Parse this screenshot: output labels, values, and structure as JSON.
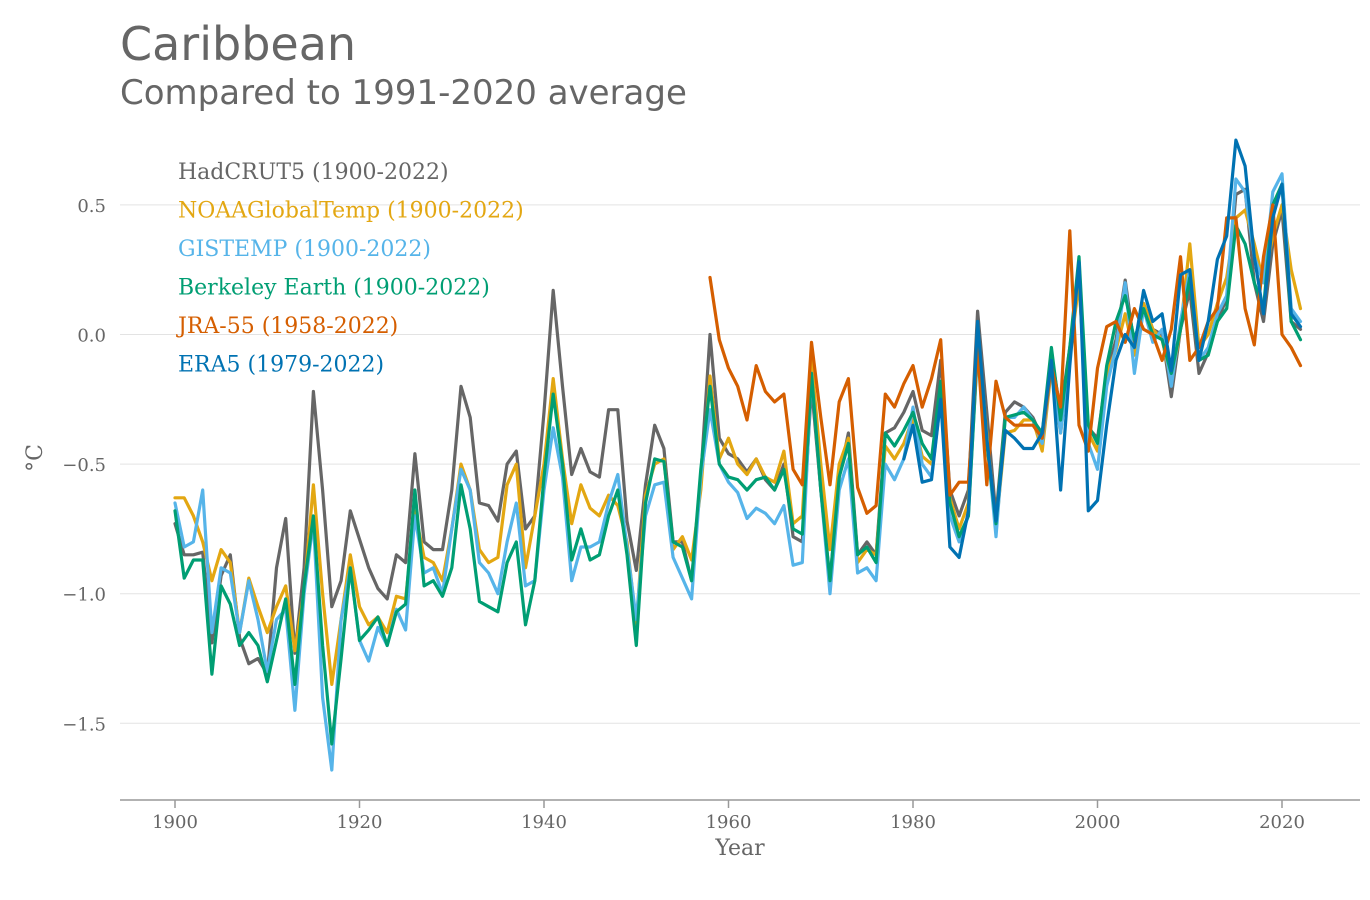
{
  "chart_data": {
    "type": "line",
    "title": "Caribbean",
    "subtitle": "Compared to 1991-2020 average",
    "xlabel": "Year",
    "ylabel": "°C",
    "xlim": [
      1894,
      1337
    ],
    "ylim": [
      -1.8,
      0.8
    ],
    "x_ticks": [
      1900,
      1920,
      1940,
      1960,
      1980,
      2000,
      2020
    ],
    "x_tick_labels": [
      "1900",
      "1920",
      "1940",
      "1960",
      "1980",
      "2000",
      "2020"
    ],
    "y_ticks": [
      -1.5,
      -1.0,
      -0.5,
      0.0,
      0.5
    ],
    "y_tick_labels": [
      "−1.5",
      "−1.0",
      "−0.5",
      "0.0",
      "0.5"
    ],
    "grid": "horizontal",
    "legend_position": "top-left",
    "series": [
      {
        "name": "HadCRUT5 (1900-2022)",
        "color": "#666666",
        "start_year": 1900,
        "values": [
          -0.73,
          -0.85,
          -0.85,
          -0.84,
          -1.19,
          -0.93,
          -0.85,
          -1.17,
          -1.27,
          -1.25,
          -1.31,
          -0.9,
          -0.71,
          -1.23,
          -0.9,
          -0.22,
          -0.6,
          -1.05,
          -0.95,
          -0.68,
          -0.79,
          -0.9,
          -0.98,
          -1.02,
          -0.85,
          -0.88,
          -0.46,
          -0.8,
          -0.83,
          -0.83,
          -0.6,
          -0.2,
          -0.32,
          -0.65,
          -0.66,
          -0.72,
          -0.5,
          -0.45,
          -0.75,
          -0.7,
          -0.3,
          0.17,
          -0.2,
          -0.54,
          -0.44,
          -0.53,
          -0.55,
          -0.29,
          -0.29,
          -0.72,
          -0.91,
          -0.58,
          -0.35,
          -0.44,
          -0.8,
          -0.8,
          -0.95,
          -0.55,
          0.0,
          -0.4,
          -0.46,
          -0.48,
          -0.53,
          -0.48,
          -0.56,
          -0.6,
          -0.5,
          -0.78,
          -0.8,
          -0.2,
          -0.6,
          -0.95,
          -0.55,
          -0.38,
          -0.85,
          -0.8,
          -0.85,
          -0.38,
          -0.36,
          -0.3,
          -0.22,
          -0.37,
          -0.39,
          -0.1,
          -0.6,
          -0.7,
          -0.6,
          0.09,
          -0.3,
          -0.7,
          -0.3,
          -0.26,
          -0.28,
          -0.32,
          -0.4,
          -0.08,
          -0.3,
          -0.05,
          0.2,
          -0.36,
          -0.4,
          -0.15,
          -0.02,
          0.21,
          -0.05,
          0.12,
          0.02,
          0.0,
          -0.24,
          0.02,
          0.17,
          -0.15,
          -0.07,
          0.05,
          0.14,
          0.54,
          0.56,
          0.2,
          0.05,
          0.35,
          0.48,
          0.05,
          0.02
        ]
      },
      {
        "name": "NOAAGlobalTemp (1900-2022)",
        "color": "#E3A712",
        "start_year": 1900,
        "values": [
          -0.63,
          -0.63,
          -0.7,
          -0.8,
          -0.95,
          -0.83,
          -0.88,
          -1.15,
          -0.94,
          -1.05,
          -1.15,
          -1.05,
          -0.97,
          -1.22,
          -0.99,
          -0.58,
          -1.0,
          -1.35,
          -1.1,
          -0.85,
          -1.05,
          -1.12,
          -1.09,
          -1.15,
          -1.01,
          -1.02,
          -0.68,
          -0.86,
          -0.88,
          -0.95,
          -0.75,
          -0.5,
          -0.6,
          -0.83,
          -0.88,
          -0.86,
          -0.58,
          -0.5,
          -0.9,
          -0.7,
          -0.5,
          -0.17,
          -0.48,
          -0.73,
          -0.58,
          -0.67,
          -0.7,
          -0.62,
          -0.66,
          -0.8,
          -1.12,
          -0.62,
          -0.5,
          -0.48,
          -0.83,
          -0.78,
          -0.87,
          -0.6,
          -0.16,
          -0.48,
          -0.4,
          -0.5,
          -0.54,
          -0.48,
          -0.55,
          -0.57,
          -0.45,
          -0.73,
          -0.7,
          -0.1,
          -0.5,
          -0.83,
          -0.5,
          -0.4,
          -0.88,
          -0.83,
          -0.85,
          -0.43,
          -0.48,
          -0.42,
          -0.32,
          -0.47,
          -0.5,
          -0.23,
          -0.63,
          -0.75,
          -0.65,
          0.0,
          -0.38,
          -0.75,
          -0.38,
          -0.37,
          -0.33,
          -0.33,
          -0.45,
          -0.13,
          -0.38,
          -0.08,
          0.2,
          -0.38,
          -0.45,
          -0.15,
          -0.06,
          0.08,
          -0.08,
          0.12,
          0.02,
          -0.02,
          -0.18,
          0.02,
          0.35,
          -0.05,
          0.0,
          0.12,
          0.22,
          0.45,
          0.48,
          0.35,
          0.2,
          0.38,
          0.5,
          0.25,
          0.1
        ]
      },
      {
        "name": "GISTEMP (1900-2022)",
        "color": "#56B4E9",
        "start_year": 1900,
        "values": [
          -0.65,
          -0.82,
          -0.8,
          -0.6,
          -1.15,
          -0.9,
          -0.92,
          -1.15,
          -0.95,
          -1.1,
          -1.3,
          -1.1,
          -1.06,
          -1.45,
          -1.0,
          -0.72,
          -1.4,
          -1.68,
          -1.1,
          -0.9,
          -1.18,
          -1.26,
          -1.13,
          -1.2,
          -1.06,
          -1.14,
          -0.7,
          -0.92,
          -0.9,
          -1.0,
          -0.75,
          -0.52,
          -0.6,
          -0.88,
          -0.92,
          -1.0,
          -0.8,
          -0.65,
          -0.97,
          -0.95,
          -0.6,
          -0.36,
          -0.55,
          -0.95,
          -0.82,
          -0.82,
          -0.8,
          -0.65,
          -0.54,
          -0.82,
          -1.1,
          -0.7,
          -0.58,
          -0.57,
          -0.86,
          -0.94,
          -1.02,
          -0.55,
          -0.29,
          -0.5,
          -0.57,
          -0.61,
          -0.71,
          -0.67,
          -0.69,
          -0.73,
          -0.66,
          -0.89,
          -0.88,
          -0.15,
          -0.6,
          -1.0,
          -0.6,
          -0.48,
          -0.92,
          -0.9,
          -0.95,
          -0.5,
          -0.56,
          -0.48,
          -0.28,
          -0.5,
          -0.55,
          -0.25,
          -0.7,
          -0.8,
          -0.7,
          -0.05,
          -0.4,
          -0.78,
          -0.32,
          -0.32,
          -0.28,
          -0.33,
          -0.42,
          -0.12,
          -0.38,
          -0.1,
          0.28,
          -0.42,
          -0.52,
          -0.2,
          -0.05,
          0.2,
          -0.15,
          0.1,
          -0.03,
          0.02,
          -0.2,
          0.05,
          0.25,
          -0.1,
          -0.05,
          0.08,
          0.15,
          0.6,
          0.55,
          0.3,
          0.2,
          0.55,
          0.62,
          0.1,
          0.05
        ]
      },
      {
        "name": "Berkeley Earth (1900-2022)",
        "color": "#009E73",
        "start_year": 1900,
        "values": [
          -0.68,
          -0.94,
          -0.87,
          -0.87,
          -1.31,
          -0.97,
          -1.04,
          -1.2,
          -1.15,
          -1.2,
          -1.34,
          -1.18,
          -1.02,
          -1.35,
          -0.97,
          -0.7,
          -1.2,
          -1.58,
          -1.25,
          -0.9,
          -1.18,
          -1.14,
          -1.09,
          -1.2,
          -1.07,
          -1.04,
          -0.6,
          -0.97,
          -0.95,
          -1.01,
          -0.9,
          -0.58,
          -0.75,
          -1.03,
          -1.05,
          -1.07,
          -0.88,
          -0.8,
          -1.12,
          -0.95,
          -0.55,
          -0.23,
          -0.5,
          -0.87,
          -0.75,
          -0.87,
          -0.85,
          -0.7,
          -0.6,
          -0.85,
          -1.2,
          -0.65,
          -0.48,
          -0.49,
          -0.8,
          -0.82,
          -0.95,
          -0.52,
          -0.2,
          -0.5,
          -0.55,
          -0.56,
          -0.6,
          -0.56,
          -0.55,
          -0.6,
          -0.52,
          -0.75,
          -0.77,
          -0.15,
          -0.6,
          -0.95,
          -0.55,
          -0.42,
          -0.85,
          -0.82,
          -0.88,
          -0.38,
          -0.43,
          -0.37,
          -0.3,
          -0.42,
          -0.48,
          -0.18,
          -0.65,
          -0.78,
          -0.7,
          -0.05,
          -0.42,
          -0.73,
          -0.32,
          -0.31,
          -0.3,
          -0.33,
          -0.38,
          -0.05,
          -0.33,
          -0.05,
          0.3,
          -0.35,
          -0.42,
          -0.12,
          0.05,
          0.15,
          -0.02,
          0.1,
          0.0,
          -0.02,
          -0.15,
          0.02,
          0.22,
          -0.1,
          -0.08,
          0.05,
          0.1,
          0.42,
          0.35,
          0.2,
          0.1,
          0.5,
          0.58,
          0.05,
          -0.02
        ]
      },
      {
        "name": "JRA-55 (1958-2022)",
        "color": "#D55E00",
        "start_year": 1958,
        "values": [
          0.22,
          -0.02,
          -0.13,
          -0.2,
          -0.33,
          -0.12,
          -0.22,
          -0.26,
          -0.23,
          -0.52,
          -0.58,
          -0.03,
          -0.32,
          -0.58,
          -0.26,
          -0.17,
          -0.59,
          -0.69,
          -0.66,
          -0.23,
          -0.28,
          -0.19,
          -0.12,
          -0.28,
          -0.17,
          -0.02,
          -0.62,
          -0.57,
          -0.57,
          -0.05,
          -0.58,
          -0.18,
          -0.32,
          -0.35,
          -0.35,
          -0.35,
          -0.4,
          -0.12,
          -0.28,
          0.4,
          -0.35,
          -0.45,
          -0.13,
          0.03,
          0.05,
          -0.03,
          0.1,
          0.02,
          0.0,
          -0.1,
          0.02,
          0.3,
          -0.1,
          -0.05,
          0.05,
          0.1,
          0.45,
          0.45,
          0.1,
          -0.04,
          0.3,
          0.5,
          0.0,
          -0.05,
          -0.12
        ]
      },
      {
        "name": "ERA5 (1979-2022)",
        "color": "#0072B2",
        "start_year": 1979,
        "values": [
          -0.48,
          -0.35,
          -0.57,
          -0.56,
          -0.25,
          -0.82,
          -0.86,
          -0.68,
          0.05,
          -0.4,
          -0.72,
          -0.37,
          -0.4,
          -0.44,
          -0.44,
          -0.38,
          -0.1,
          -0.6,
          -0.12,
          0.28,
          -0.68,
          -0.64,
          -0.35,
          -0.1,
          0.0,
          -0.05,
          0.17,
          0.05,
          0.08,
          -0.14,
          0.23,
          0.25,
          -0.1,
          0.05,
          0.29,
          0.38,
          0.75,
          0.65,
          0.3,
          0.08,
          0.45,
          0.58,
          0.08,
          0.03
        ]
      }
    ]
  }
}
